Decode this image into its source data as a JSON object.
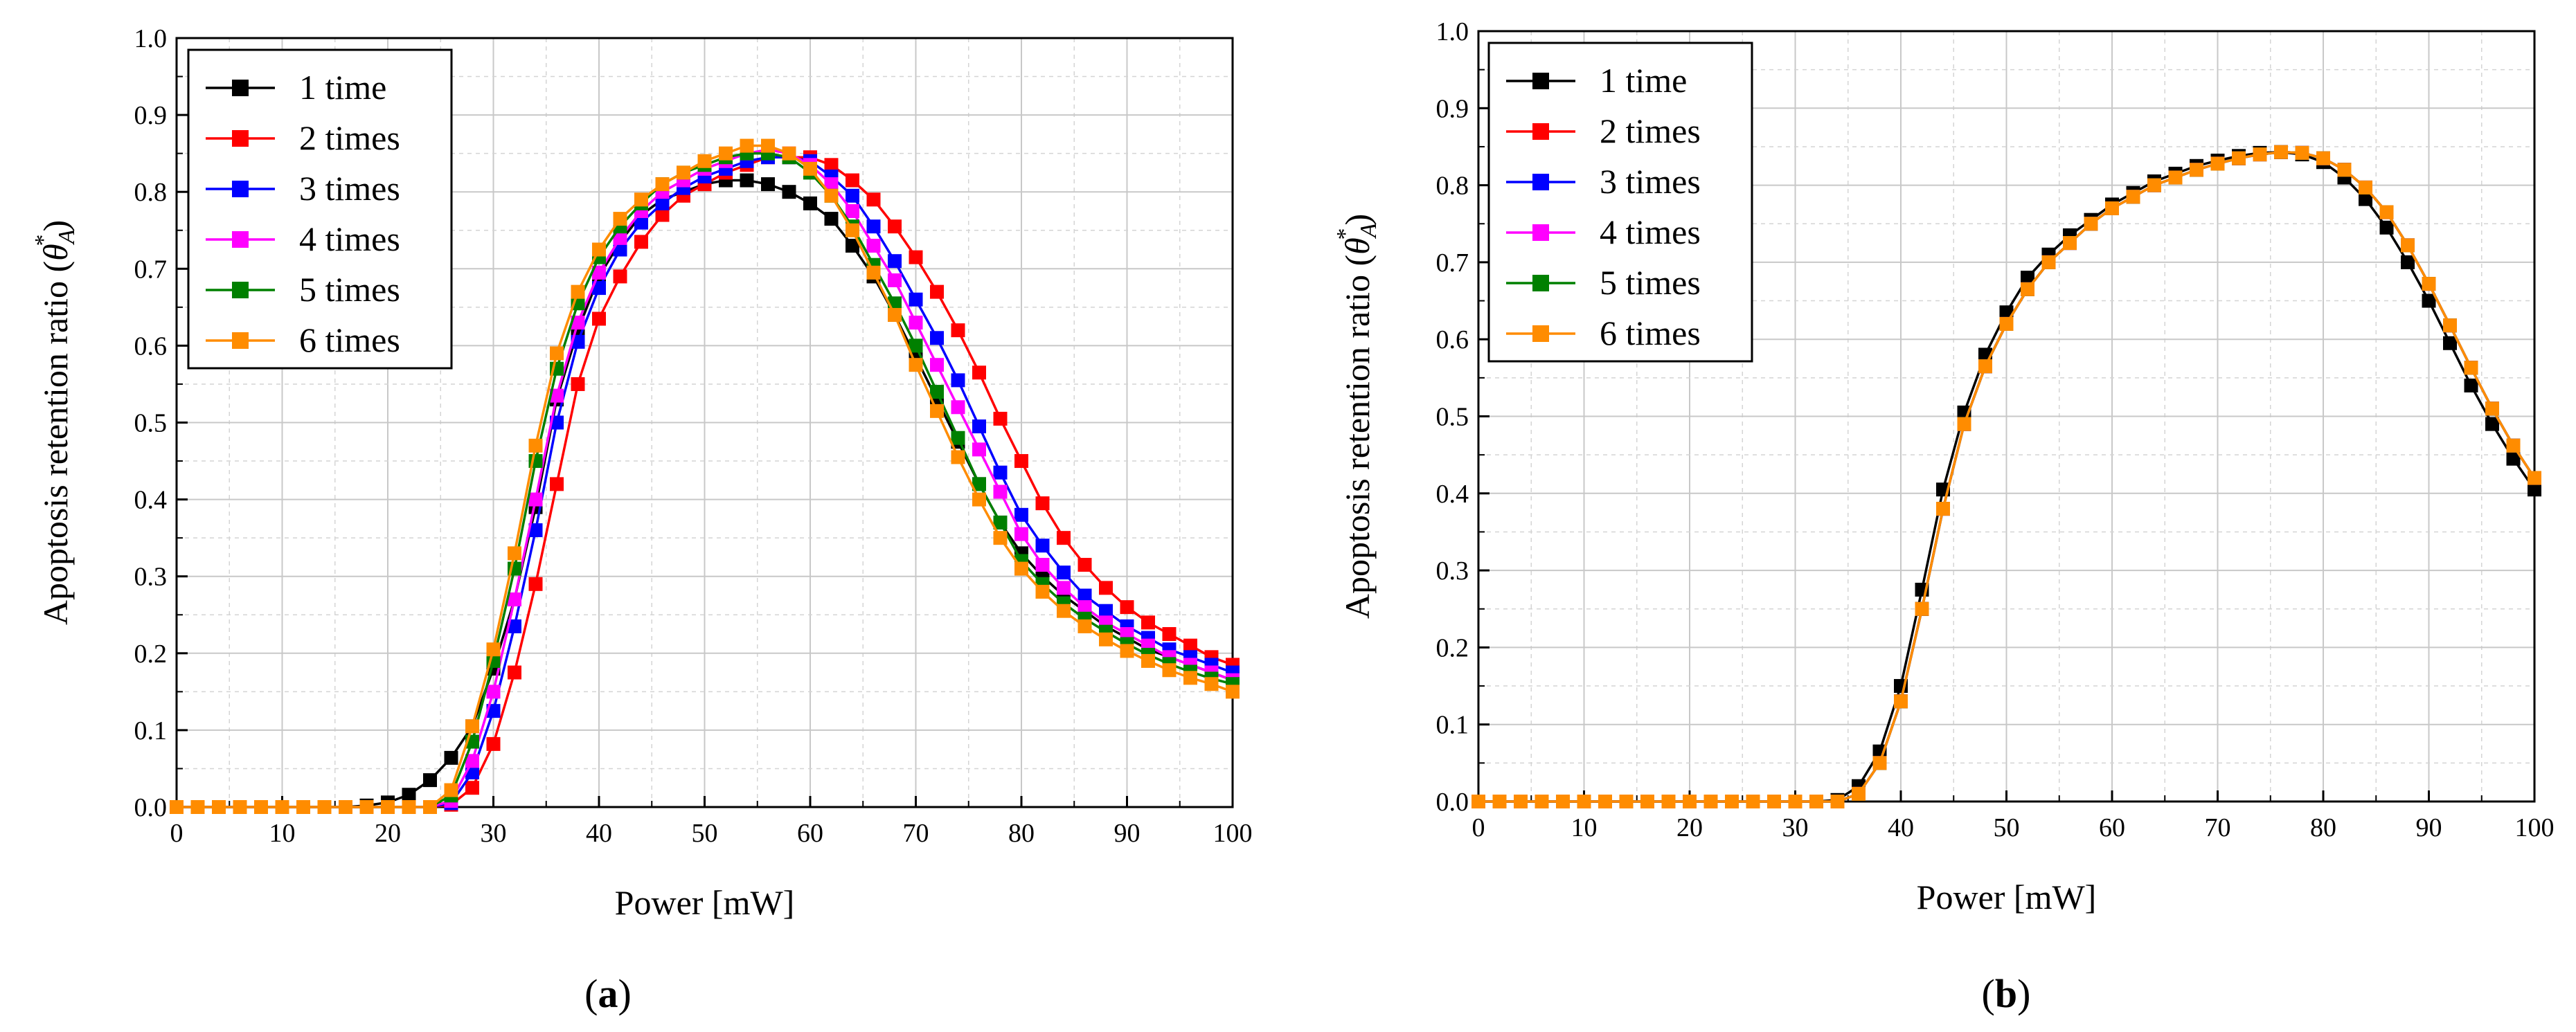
{
  "colors": {
    "1 time": "#000000",
    "2 times": "#ff0000",
    "3 times": "#0000ff",
    "4 times": "#ff00ff",
    "5 times": "#008000",
    "6 times": "#ff8c00"
  },
  "chart_data": [
    {
      "type": "line",
      "panel_label": "a",
      "xlabel": "Power [mW]",
      "ylabel": "Apoptosis retention ratio",
      "ylabel_symbol": "θ",
      "ylabel_sub": "A",
      "ylabel_sup": "*",
      "xlim": [
        0,
        100
      ],
      "ylim": [
        0,
        1.0
      ],
      "xticks": [
        "0",
        "10",
        "20",
        "30",
        "40",
        "50",
        "60",
        "70",
        "80",
        "90",
        "100"
      ],
      "yticks": [
        "0.0",
        "0.1",
        "0.2",
        "0.3",
        "0.4",
        "0.5",
        "0.6",
        "0.7",
        "0.8",
        "0.9",
        "1.0"
      ],
      "legend_position": "top-left",
      "x": [
        0,
        2,
        4,
        6,
        8,
        10,
        12,
        14,
        16,
        18,
        20,
        22,
        24,
        26,
        28,
        30,
        32,
        34,
        36,
        38,
        40,
        42,
        44,
        46,
        48,
        50,
        52,
        54,
        56,
        58,
        60,
        62,
        64,
        66,
        68,
        70,
        72,
        74,
        76,
        78,
        80,
        82,
        84,
        86,
        88,
        90,
        92,
        94,
        96,
        98,
        100
      ],
      "series": [
        {
          "name": "1 time",
          "values": [
            0,
            0,
            0,
            0,
            0,
            0,
            0,
            0,
            0,
            0.002,
            0.006,
            0.016,
            0.035,
            0.064,
            0.105,
            0.18,
            0.27,
            0.39,
            0.53,
            0.62,
            0.69,
            0.735,
            0.77,
            0.79,
            0.8,
            0.81,
            0.815,
            0.815,
            0.81,
            0.8,
            0.785,
            0.765,
            0.73,
            0.69,
            0.64,
            0.585,
            0.53,
            0.475,
            0.42,
            0.37,
            0.33,
            0.3,
            0.275,
            0.255,
            0.235,
            0.22,
            0.205,
            0.195,
            0.185,
            0.175,
            0.165
          ]
        },
        {
          "name": "2 times",
          "values": [
            0,
            0,
            0,
            0,
            0,
            0,
            0,
            0,
            0,
            0,
            0,
            0,
            0,
            0.003,
            0.025,
            0.082,
            0.175,
            0.29,
            0.42,
            0.55,
            0.635,
            0.69,
            0.735,
            0.77,
            0.795,
            0.81,
            0.825,
            0.835,
            0.845,
            0.845,
            0.845,
            0.835,
            0.815,
            0.79,
            0.755,
            0.715,
            0.67,
            0.62,
            0.565,
            0.505,
            0.45,
            0.395,
            0.35,
            0.315,
            0.285,
            0.26,
            0.24,
            0.225,
            0.21,
            0.195,
            0.185
          ]
        },
        {
          "name": "3 times",
          "values": [
            0,
            0,
            0,
            0,
            0,
            0,
            0,
            0,
            0,
            0,
            0,
            0,
            0,
            0.005,
            0.045,
            0.125,
            0.235,
            0.36,
            0.5,
            0.605,
            0.675,
            0.725,
            0.76,
            0.785,
            0.805,
            0.82,
            0.83,
            0.84,
            0.845,
            0.845,
            0.84,
            0.82,
            0.795,
            0.755,
            0.71,
            0.66,
            0.61,
            0.555,
            0.495,
            0.435,
            0.38,
            0.34,
            0.305,
            0.275,
            0.255,
            0.235,
            0.22,
            0.205,
            0.195,
            0.185,
            0.175
          ]
        },
        {
          "name": "4 times",
          "values": [
            0,
            0,
            0,
            0,
            0,
            0,
            0,
            0,
            0,
            0,
            0,
            0,
            0,
            0.008,
            0.06,
            0.15,
            0.27,
            0.4,
            0.535,
            0.63,
            0.695,
            0.74,
            0.775,
            0.8,
            0.815,
            0.83,
            0.84,
            0.85,
            0.855,
            0.85,
            0.835,
            0.81,
            0.775,
            0.73,
            0.685,
            0.63,
            0.575,
            0.52,
            0.465,
            0.41,
            0.355,
            0.315,
            0.285,
            0.26,
            0.24,
            0.225,
            0.21,
            0.195,
            0.185,
            0.175,
            0.165
          ]
        },
        {
          "name": "5 times",
          "values": [
            0,
            0,
            0,
            0,
            0,
            0,
            0,
            0,
            0,
            0,
            0,
            0,
            0,
            0.015,
            0.085,
            0.19,
            0.31,
            0.45,
            0.57,
            0.655,
            0.715,
            0.755,
            0.785,
            0.81,
            0.825,
            0.835,
            0.845,
            0.85,
            0.85,
            0.845,
            0.825,
            0.795,
            0.755,
            0.705,
            0.655,
            0.6,
            0.54,
            0.48,
            0.42,
            0.37,
            0.32,
            0.29,
            0.265,
            0.245,
            0.228,
            0.212,
            0.198,
            0.186,
            0.176,
            0.167,
            0.16
          ]
        },
        {
          "name": "6 times",
          "values": [
            0,
            0,
            0,
            0,
            0,
            0,
            0,
            0,
            0,
            0,
            0,
            0,
            0,
            0.022,
            0.105,
            0.205,
            0.33,
            0.47,
            0.59,
            0.67,
            0.725,
            0.765,
            0.79,
            0.81,
            0.825,
            0.84,
            0.85,
            0.86,
            0.86,
            0.85,
            0.83,
            0.795,
            0.75,
            0.695,
            0.64,
            0.575,
            0.515,
            0.455,
            0.4,
            0.35,
            0.31,
            0.28,
            0.255,
            0.235,
            0.218,
            0.203,
            0.19,
            0.178,
            0.168,
            0.16,
            0.15
          ]
        }
      ]
    },
    {
      "type": "line",
      "panel_label": "b",
      "xlabel": "Power [mW]",
      "ylabel": "Apoptosis retention ratio",
      "ylabel_symbol": "θ",
      "ylabel_sub": "A",
      "ylabel_sup": "*",
      "xlim": [
        0,
        100
      ],
      "ylim": [
        0,
        1.0
      ],
      "xticks": [
        "0",
        "10",
        "20",
        "30",
        "40",
        "50",
        "60",
        "70",
        "80",
        "90",
        "100"
      ],
      "yticks": [
        "0.0",
        "0.1",
        "0.2",
        "0.3",
        "0.4",
        "0.5",
        "0.6",
        "0.7",
        "0.8",
        "0.9",
        "1.0"
      ],
      "legend_position": "top-left",
      "x": [
        0,
        2,
        4,
        6,
        8,
        10,
        12,
        14,
        16,
        18,
        20,
        22,
        24,
        26,
        28,
        30,
        32,
        34,
        36,
        38,
        40,
        42,
        44,
        46,
        48,
        50,
        52,
        54,
        56,
        58,
        60,
        62,
        64,
        66,
        68,
        70,
        72,
        74,
        76,
        78,
        80,
        82,
        84,
        86,
        88,
        90,
        92,
        94,
        96,
        98,
        100
      ],
      "series": [
        {
          "name": "1 time",
          "values": [
            0,
            0,
            0,
            0,
            0,
            0,
            0,
            0,
            0,
            0,
            0,
            0,
            0,
            0,
            0,
            0,
            0,
            0.002,
            0.02,
            0.065,
            0.15,
            0.275,
            0.405,
            0.505,
            0.58,
            0.635,
            0.68,
            0.71,
            0.735,
            0.755,
            0.775,
            0.79,
            0.805,
            0.815,
            0.825,
            0.832,
            0.838,
            0.842,
            0.843,
            0.84,
            0.83,
            0.81,
            0.782,
            0.745,
            0.7,
            0.65,
            0.595,
            0.54,
            0.49,
            0.445,
            0.405
          ]
        },
        {
          "name": "2 times",
          "values": [
            0,
            0,
            0,
            0,
            0,
            0,
            0,
            0,
            0,
            0,
            0,
            0,
            0,
            0,
            0,
            0,
            0,
            0,
            0.01,
            0.05,
            0.13,
            0.25,
            0.38,
            0.49,
            0.565,
            0.62,
            0.665,
            0.7,
            0.725,
            0.75,
            0.77,
            0.785,
            0.8,
            0.81,
            0.82,
            0.828,
            0.835,
            0.84,
            0.843,
            0.842,
            0.835,
            0.82,
            0.797,
            0.765,
            0.722,
            0.672,
            0.618,
            0.563,
            0.51,
            0.462,
            0.42
          ]
        },
        {
          "name": "3 times",
          "values": [
            0,
            0,
            0,
            0,
            0,
            0,
            0,
            0,
            0,
            0,
            0,
            0,
            0,
            0,
            0,
            0,
            0,
            0,
            0.01,
            0.05,
            0.13,
            0.25,
            0.38,
            0.49,
            0.565,
            0.62,
            0.665,
            0.7,
            0.725,
            0.75,
            0.77,
            0.785,
            0.8,
            0.81,
            0.82,
            0.828,
            0.835,
            0.84,
            0.843,
            0.842,
            0.835,
            0.82,
            0.797,
            0.765,
            0.722,
            0.672,
            0.618,
            0.563,
            0.51,
            0.462,
            0.42
          ]
        },
        {
          "name": "4 times",
          "values": [
            0,
            0,
            0,
            0,
            0,
            0,
            0,
            0,
            0,
            0,
            0,
            0,
            0,
            0,
            0,
            0,
            0,
            0,
            0.01,
            0.05,
            0.13,
            0.25,
            0.38,
            0.49,
            0.565,
            0.62,
            0.665,
            0.7,
            0.725,
            0.75,
            0.77,
            0.785,
            0.8,
            0.81,
            0.82,
            0.828,
            0.835,
            0.84,
            0.843,
            0.842,
            0.835,
            0.82,
            0.797,
            0.765,
            0.722,
            0.672,
            0.618,
            0.563,
            0.51,
            0.462,
            0.42
          ]
        },
        {
          "name": "5 times",
          "values": [
            0,
            0,
            0,
            0,
            0,
            0,
            0,
            0,
            0,
            0,
            0,
            0,
            0,
            0,
            0,
            0,
            0,
            0,
            0.01,
            0.05,
            0.13,
            0.25,
            0.38,
            0.49,
            0.565,
            0.62,
            0.665,
            0.7,
            0.725,
            0.75,
            0.77,
            0.785,
            0.8,
            0.81,
            0.82,
            0.828,
            0.835,
            0.84,
            0.843,
            0.842,
            0.835,
            0.82,
            0.797,
            0.765,
            0.722,
            0.672,
            0.618,
            0.563,
            0.51,
            0.462,
            0.42
          ]
        },
        {
          "name": "6 times",
          "values": [
            0,
            0,
            0,
            0,
            0,
            0,
            0,
            0,
            0,
            0,
            0,
            0,
            0,
            0,
            0,
            0,
            0,
            0,
            0.01,
            0.05,
            0.13,
            0.25,
            0.38,
            0.49,
            0.565,
            0.62,
            0.665,
            0.7,
            0.725,
            0.75,
            0.77,
            0.785,
            0.8,
            0.81,
            0.82,
            0.828,
            0.835,
            0.84,
            0.843,
            0.842,
            0.835,
            0.82,
            0.797,
            0.765,
            0.722,
            0.672,
            0.618,
            0.563,
            0.51,
            0.462,
            0.42
          ]
        }
      ]
    }
  ]
}
